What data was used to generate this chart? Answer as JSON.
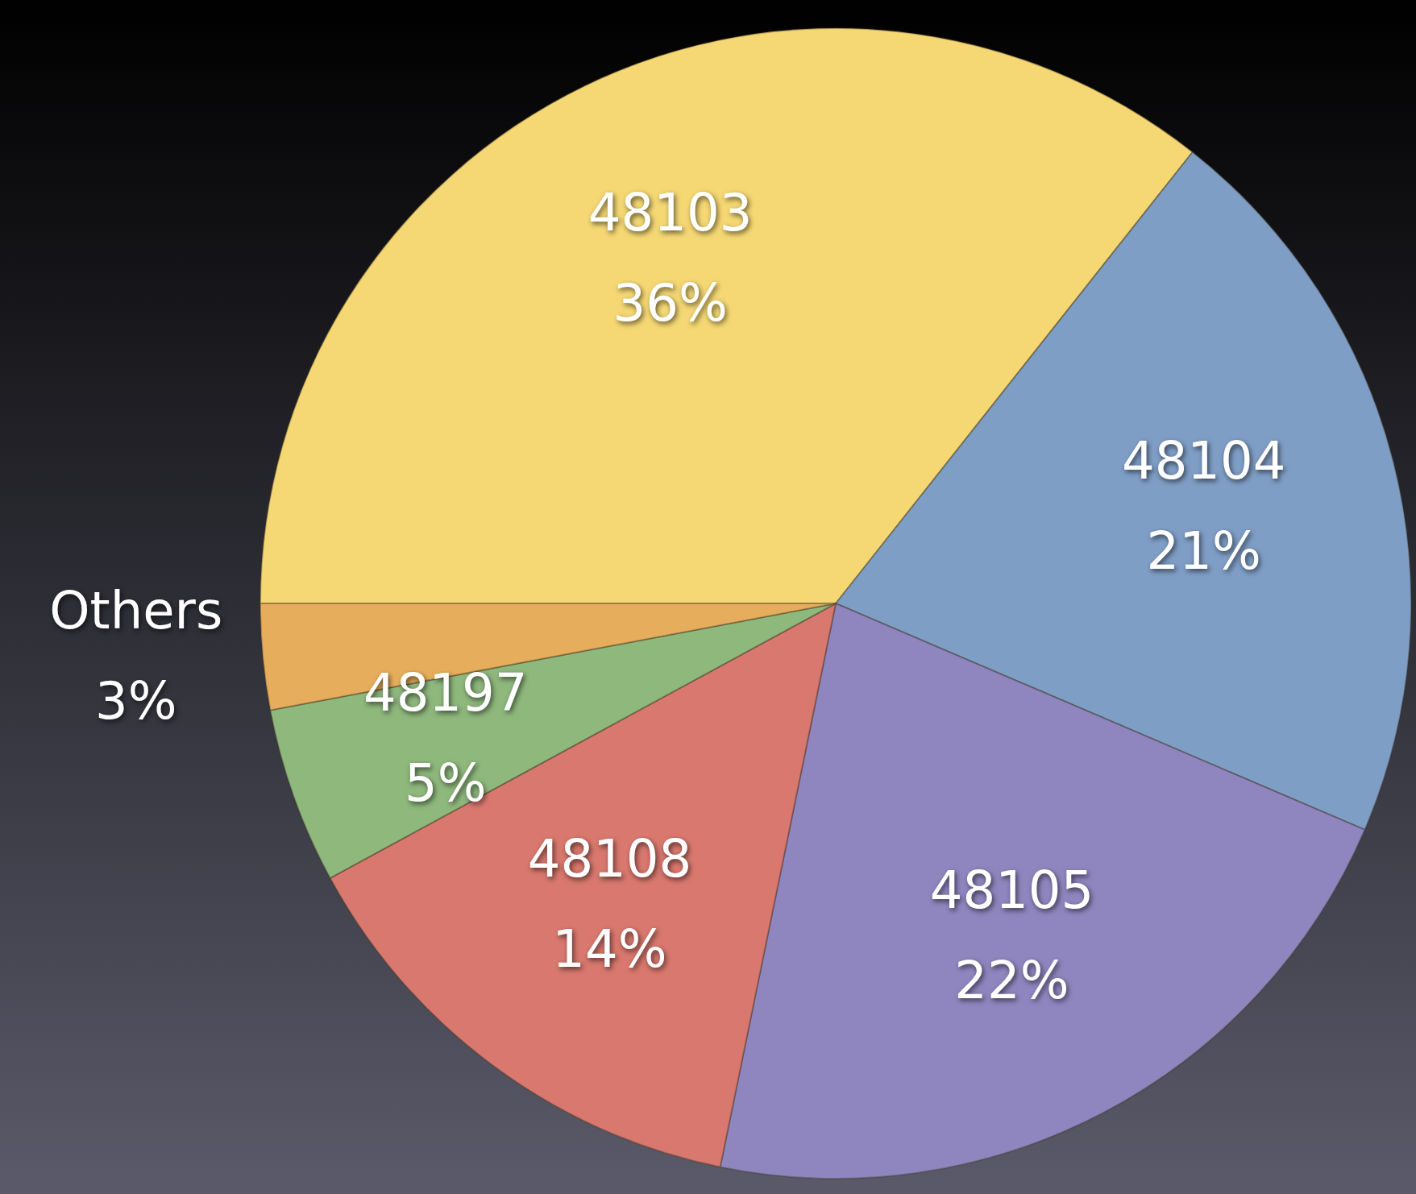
{
  "chart_data": {
    "type": "pie",
    "categories": [
      "48103",
      "48104",
      "48105",
      "48108",
      "48197",
      "Others"
    ],
    "values": [
      36,
      21,
      22,
      14,
      5,
      3
    ],
    "value_labels": [
      "36%",
      "21%",
      "22%",
      "14%",
      "5%",
      "3%"
    ],
    "colors": [
      "#f5d874",
      "#7f9ec6",
      "#9086bf",
      "#d9786e",
      "#8fb87d",
      "#e6ae5c"
    ],
    "legend": false
  }
}
